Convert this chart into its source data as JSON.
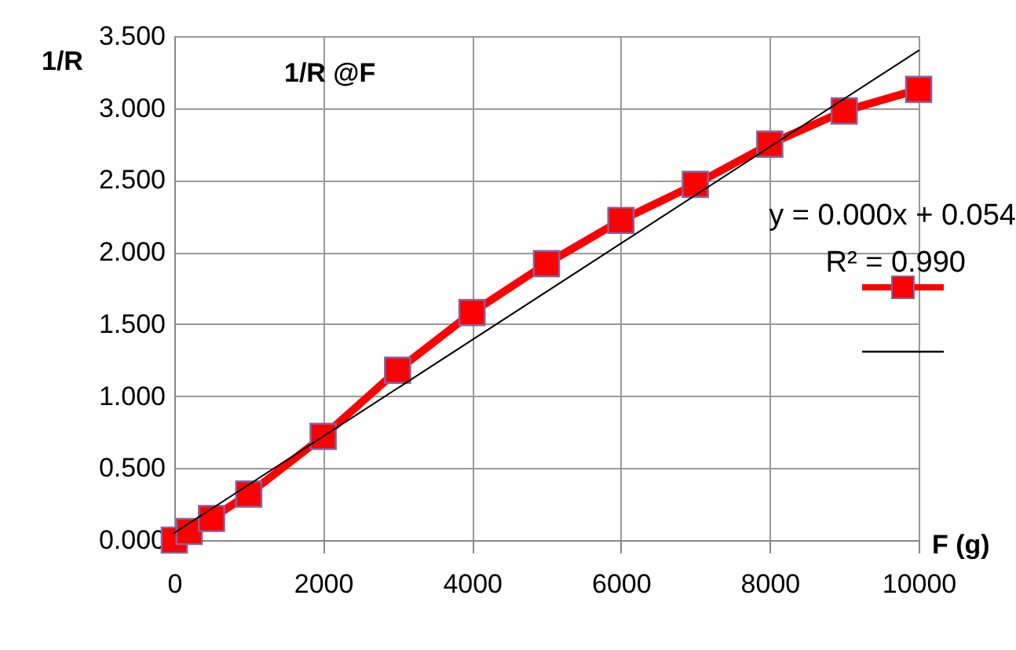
{
  "chart_data": {
    "type": "line",
    "title": "1/R @F",
    "xlabel": "F (g)",
    "ylabel": "1/R",
    "x": [
      0,
      50,
      100,
      200,
      500,
      1000,
      2000,
      3000,
      4000,
      5000,
      6000,
      7000,
      8000,
      9000,
      10000
    ],
    "series": [
      {
        "color": "#ff0000",
        "marker": "square",
        "values": [
          0.0,
          null,
          null,
          0.06,
          0.15,
          0.32,
          0.72,
          1.18,
          1.58,
          1.92,
          2.22,
          2.47,
          2.75,
          2.98,
          3.13
        ]
      },
      {
        "type": "line",
        "color": "#000000",
        "marker": "none",
        "x": [
          0,
          10000
        ],
        "values": [
          0.05,
          3.4
        ]
      }
    ],
    "annotations": [
      "y = 0.000x + 0.054",
      "R² = 0.990"
    ],
    "xlim": [
      0,
      10000
    ],
    "xticks": [
      0,
      2000,
      4000,
      6000,
      8000,
      10000
    ],
    "ylim": [
      0,
      3.5
    ],
    "yticks": [
      {
        "value": 0,
        "label": "0.000"
      },
      {
        "value": 0.5,
        "label": "0.500"
      },
      {
        "value": 1,
        "label": "1.000"
      },
      {
        "value": 1.5,
        "label": "1.500"
      },
      {
        "value": 2,
        "label": "2.000"
      },
      {
        "value": 2.5,
        "label": "2.500"
      },
      {
        "value": 3,
        "label": "3.000"
      },
      {
        "value": 3.5,
        "label": "3.500"
      }
    ],
    "grid": true
  }
}
